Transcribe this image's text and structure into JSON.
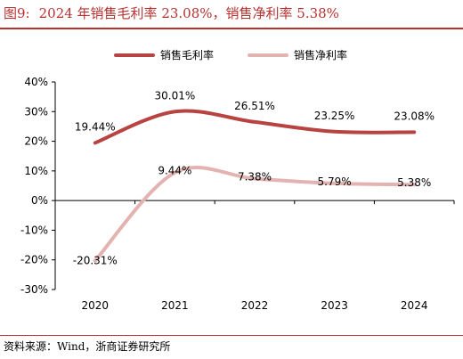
{
  "title": {
    "figure_label": "图9:",
    "text": "2024 年销售毛利率 23.08%，销售净利率 5.38%"
  },
  "source": "资料来源：Wind，浙商证券研究所",
  "colors": {
    "title": "#b8312f",
    "gross": "#b84442",
    "net": "#e2b3b1"
  },
  "chart_data": {
    "type": "line",
    "categories": [
      "2020",
      "2021",
      "2022",
      "2023",
      "2024"
    ],
    "ylim": [
      -30,
      40
    ],
    "yticks": [
      -30,
      -20,
      -10,
      0,
      10,
      20,
      30,
      40
    ],
    "ytick_labels": [
      "-30%",
      "-20%",
      "-10%",
      "0%",
      "10%",
      "20%",
      "30%",
      "40%"
    ],
    "legend": "top-right",
    "grid": false,
    "series": [
      {
        "name": "销售毛利率",
        "values": [
          19.44,
          30.01,
          26.51,
          23.25,
          23.08
        ],
        "labels": [
          "19.44%",
          "30.01%",
          "26.51%",
          "23.25%",
          "23.08%"
        ],
        "color": "#b84442"
      },
      {
        "name": "销售净利率",
        "values": [
          -20.31,
          9.44,
          7.38,
          5.79,
          5.38
        ],
        "labels": [
          "-20.31%",
          "9.44%",
          "7.38%",
          "5.79%",
          "5.38%"
        ],
        "color": "#e2b3b1"
      }
    ]
  }
}
